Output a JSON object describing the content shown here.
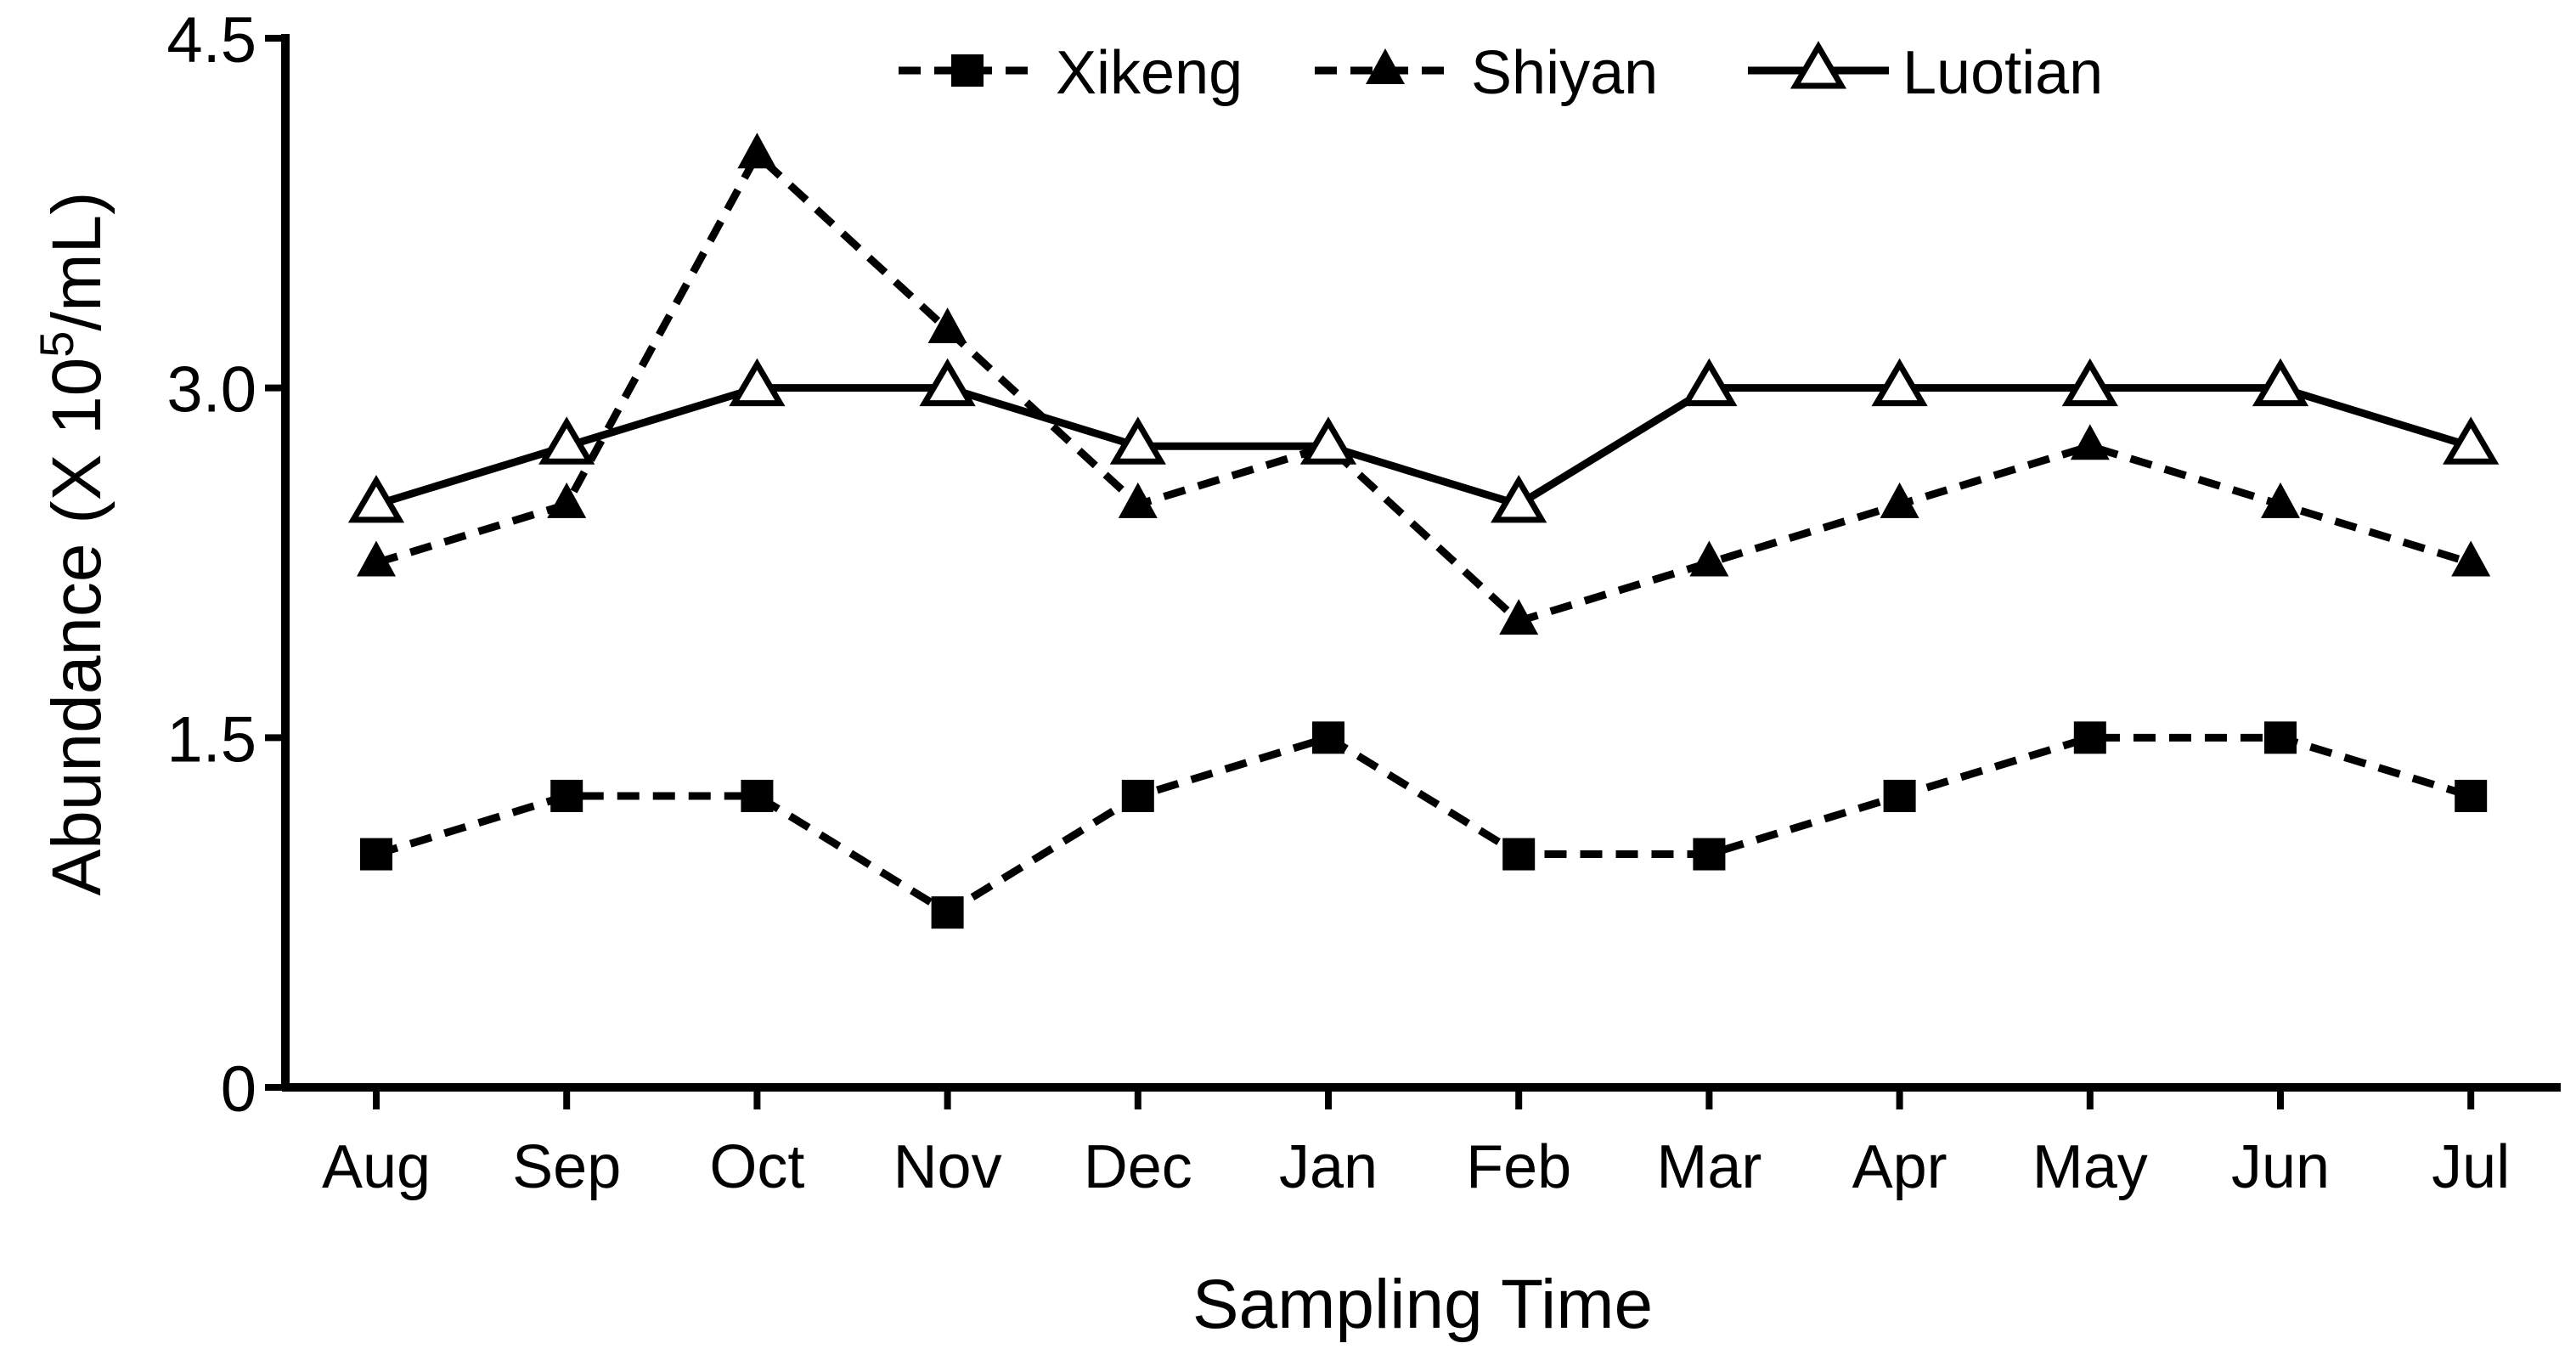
{
  "chart_data": {
    "type": "line",
    "title": "",
    "xlabel": "Sampling Time",
    "ylabel": {
      "prefix": "Abundance (X 10",
      "superscript": "5",
      "suffix": "/mL)"
    },
    "ylim": [
      0,
      4.5
    ],
    "yticks": [
      "0",
      "1.5",
      "3.0",
      "4.5"
    ],
    "ytick_values": [
      0,
      1.5,
      3.0,
      4.5
    ],
    "categories": [
      "Aug",
      "Sep",
      "Oct",
      "Nov",
      "Dec",
      "Jan",
      "Feb",
      "Mar",
      "Apr",
      "May",
      "Jun",
      "Jul"
    ],
    "grid": false,
    "legend_position": "top-center",
    "series": [
      {
        "name": "Xikeng",
        "marker": "filled-square",
        "line_style": "dashed",
        "color": "#000000",
        "values": [
          1.0,
          1.25,
          1.25,
          0.75,
          1.25,
          1.5,
          1.0,
          1.0,
          1.25,
          1.5,
          1.5,
          1.25
        ]
      },
      {
        "name": "Shiyan",
        "marker": "filled-triangle",
        "line_style": "dashed",
        "color": "#000000",
        "values": [
          2.25,
          2.5,
          4.0,
          3.25,
          2.5,
          2.75,
          2.0,
          2.25,
          2.5,
          2.75,
          2.5,
          2.25
        ]
      },
      {
        "name": "Luotian",
        "marker": "open-triangle",
        "line_style": "solid",
        "color": "#000000",
        "values": [
          2.5,
          2.75,
          3.0,
          3.0,
          2.75,
          2.75,
          2.5,
          3.0,
          3.0,
          3.0,
          3.0,
          2.75
        ]
      }
    ]
  }
}
